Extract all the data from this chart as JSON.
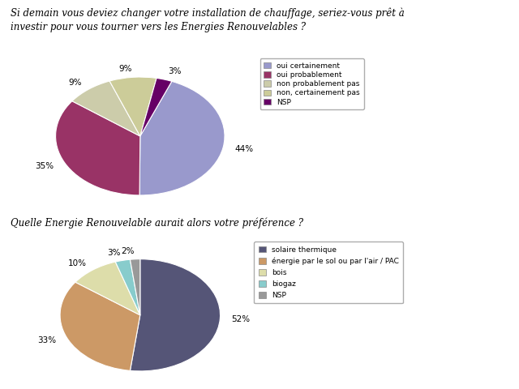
{
  "title1": "Si demain vous deviez changer votre installation de chauffage, seriez-vous prêt à\ninvestir pour vous tourner vers les Energies Renouvelables ?",
  "title2": "Quelle Energie Renouvelable aurait alors votre préférence ?",
  "pie1": {
    "values": [
      44,
      35,
      9,
      9,
      3
    ],
    "labels": [
      "44%",
      "35%",
      "9%",
      "9%",
      "3%"
    ],
    "legend": [
      "oui certainement",
      "oui probablement",
      "non probablement pas",
      "non, certainement pas",
      "NSP"
    ],
    "colors": [
      "#9999CC",
      "#993366",
      "#CCCCAA",
      "#CCCC99",
      "#660066"
    ],
    "startangle": 68
  },
  "pie2": {
    "values": [
      52,
      33,
      10,
      3,
      2
    ],
    "labels": [
      "52%",
      "33%",
      "10%",
      "3%",
      "2%"
    ],
    "legend": [
      "solaire thermique",
      "énergie par le sol ou par l'air / PAC",
      "bois",
      "biogaz",
      "NSP"
    ],
    "colors": [
      "#555577",
      "#CC9966",
      "#DDDDAA",
      "#88CCCC",
      "#999999"
    ],
    "startangle": 90
  },
  "background_color": "#FFFFFF",
  "fig_width": 6.4,
  "fig_height": 4.8,
  "dpi": 100
}
